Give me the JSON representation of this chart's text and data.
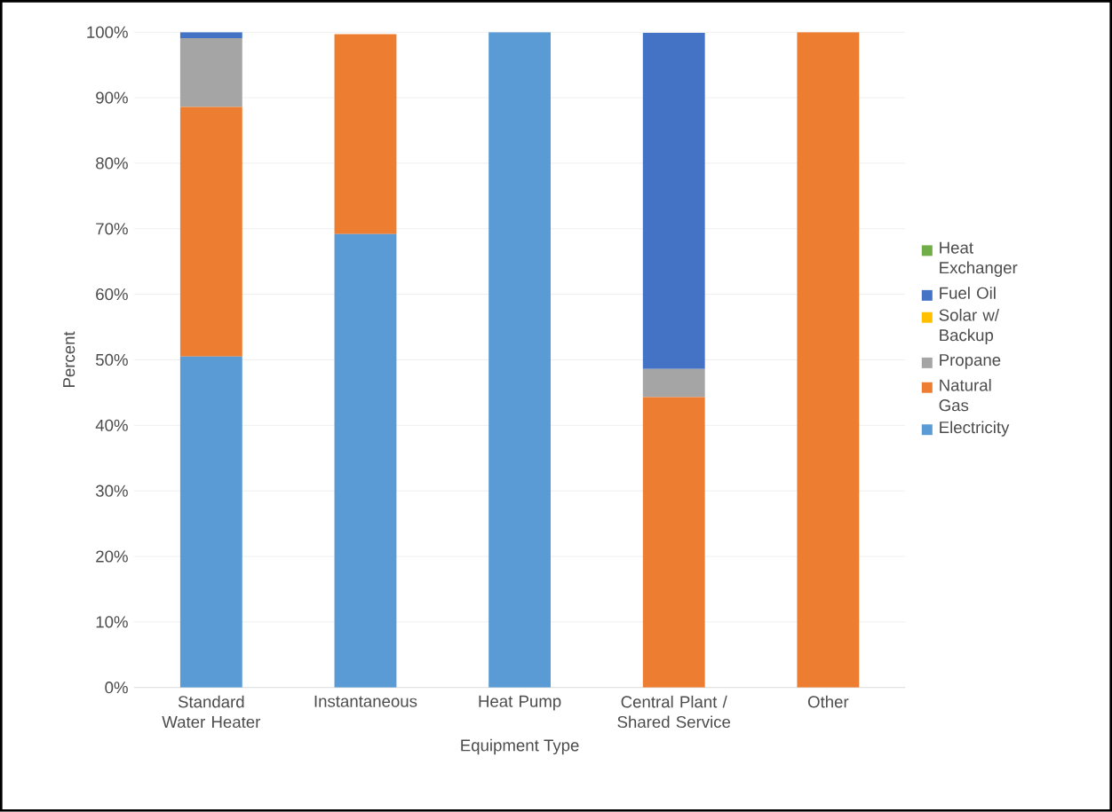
{
  "chart_data": {
    "type": "bar",
    "stacked": true,
    "xlabel": "Equipment Type",
    "ylabel": "Percent",
    "categories": [
      "Standard Water Heater",
      "Instantaneous",
      "Heat Pump",
      "Central Plant / Shared Service",
      "Other"
    ],
    "series": [
      {
        "name": "Electricity",
        "color": "#5b9bd5",
        "values": [
          50.5,
          69.2,
          100,
          0,
          0
        ]
      },
      {
        "name": "Natural Gas",
        "color": "#ed7d31",
        "values": [
          38.1,
          30.5,
          0,
          44.3,
          100
        ]
      },
      {
        "name": "Propane",
        "color": "#a5a5a5",
        "values": [
          10.5,
          null,
          0,
          4.3,
          0
        ]
      },
      {
        "name": "Solar w/ Backup",
        "color": "#ffc000",
        "values": [
          0,
          0,
          0,
          0,
          0
        ]
      },
      {
        "name": "Fuel Oil",
        "color": "#4472c4",
        "values": [
          0.9,
          0,
          0,
          51.3,
          0
        ]
      },
      {
        "name": "Heat Exchanger",
        "color": "#70ad47",
        "values": [
          0,
          0,
          0,
          null,
          0
        ]
      }
    ],
    "ylim": [
      0,
      100
    ],
    "yticks": [
      {
        "value": 0,
        "label": "0%"
      },
      {
        "value": 10,
        "label": "10%"
      },
      {
        "value": 20,
        "label": "20%"
      },
      {
        "value": 30,
        "label": "30%"
      },
      {
        "value": 40,
        "label": "40%"
      },
      {
        "value": 50,
        "label": "50%"
      },
      {
        "value": 60,
        "label": "60%"
      },
      {
        "value": 70,
        "label": "70%"
      },
      {
        "value": 80,
        "label": "80%"
      },
      {
        "value": 90,
        "label": "90%"
      },
      {
        "value": 100,
        "label": "100%"
      }
    ],
    "grid": "y",
    "legend": "right"
  }
}
